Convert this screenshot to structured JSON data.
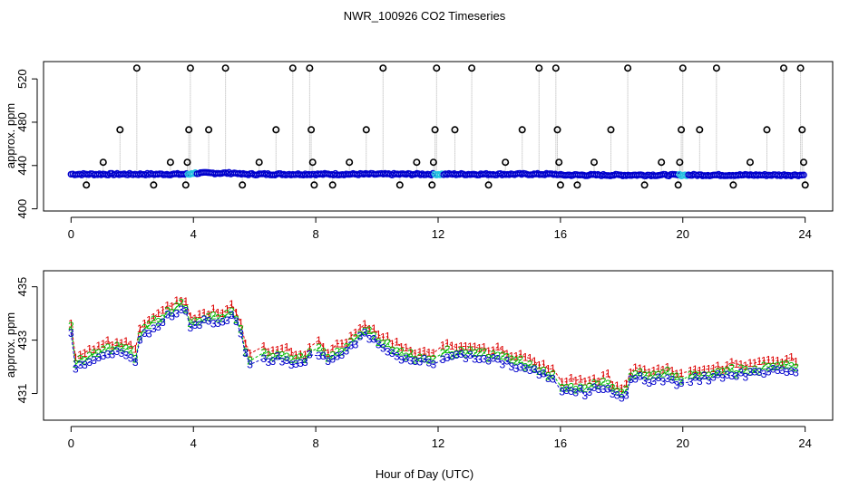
{
  "title": "NWR_100926  CO2 Timeseries",
  "xlabel": "Hour of Day (UTC)",
  "chart_data": [
    {
      "type": "scatter",
      "panel": "top",
      "ylabel": "approx. ppm",
      "xlim": [
        -0.9,
        24.9
      ],
      "ylim": [
        398,
        536
      ],
      "xticks": [
        0,
        4,
        8,
        12,
        16,
        20,
        24
      ],
      "xtick_labels": [
        "0",
        "4",
        "8",
        "12",
        "16",
        "20",
        "24"
      ],
      "yticks": [
        400,
        440,
        480,
        520
      ],
      "ytick_labels": [
        "400",
        "440",
        "480",
        "520"
      ],
      "colors": {
        "baseline": "#0000cc",
        "high_ring": "#000000",
        "connector": "#b0b0b0",
        "accent": "#22c0e0",
        "red": "#cc0000"
      },
      "outliers": [
        {
          "x": 0.5,
          "y": 422
        },
        {
          "x": 1.05,
          "y": 443
        },
        {
          "x": 1.6,
          "y": 473
        },
        {
          "x": 2.15,
          "y": 530
        },
        {
          "x": 2.7,
          "y": 422
        },
        {
          "x": 3.25,
          "y": 443
        },
        {
          "x": 3.75,
          "y": 422
        },
        {
          "x": 3.8,
          "y": 443
        },
        {
          "x": 3.85,
          "y": 473
        },
        {
          "x": 3.9,
          "y": 530
        },
        {
          "x": 4.5,
          "y": 473
        },
        {
          "x": 5.05,
          "y": 530
        },
        {
          "x": 5.6,
          "y": 422
        },
        {
          "x": 6.15,
          "y": 443
        },
        {
          "x": 6.7,
          "y": 473
        },
        {
          "x": 7.25,
          "y": 530
        },
        {
          "x": 7.8,
          "y": 530
        },
        {
          "x": 7.85,
          "y": 473
        },
        {
          "x": 7.9,
          "y": 443
        },
        {
          "x": 7.95,
          "y": 422
        },
        {
          "x": 8.55,
          "y": 422
        },
        {
          "x": 9.1,
          "y": 443
        },
        {
          "x": 9.65,
          "y": 473
        },
        {
          "x": 10.2,
          "y": 530
        },
        {
          "x": 10.75,
          "y": 422
        },
        {
          "x": 11.3,
          "y": 443
        },
        {
          "x": 11.8,
          "y": 422
        },
        {
          "x": 11.85,
          "y": 443
        },
        {
          "x": 11.9,
          "y": 473
        },
        {
          "x": 11.95,
          "y": 530
        },
        {
          "x": 12.55,
          "y": 473
        },
        {
          "x": 13.1,
          "y": 530
        },
        {
          "x": 13.65,
          "y": 422
        },
        {
          "x": 14.2,
          "y": 443
        },
        {
          "x": 14.75,
          "y": 473
        },
        {
          "x": 15.3,
          "y": 530
        },
        {
          "x": 15.85,
          "y": 530
        },
        {
          "x": 15.9,
          "y": 473
        },
        {
          "x": 15.95,
          "y": 443
        },
        {
          "x": 16.0,
          "y": 422
        },
        {
          "x": 16.55,
          "y": 422
        },
        {
          "x": 17.1,
          "y": 443
        },
        {
          "x": 17.65,
          "y": 473
        },
        {
          "x": 18.2,
          "y": 530
        },
        {
          "x": 18.75,
          "y": 422
        },
        {
          "x": 19.3,
          "y": 443
        },
        {
          "x": 19.85,
          "y": 422
        },
        {
          "x": 19.9,
          "y": 443
        },
        {
          "x": 19.95,
          "y": 473
        },
        {
          "x": 20.0,
          "y": 530
        },
        {
          "x": 20.55,
          "y": 473
        },
        {
          "x": 21.1,
          "y": 530
        },
        {
          "x": 21.65,
          "y": 422
        },
        {
          "x": 22.2,
          "y": 443
        },
        {
          "x": 22.75,
          "y": 473
        },
        {
          "x": 23.3,
          "y": 530
        },
        {
          "x": 23.85,
          "y": 530
        },
        {
          "x": 23.9,
          "y": 473
        },
        {
          "x": 23.95,
          "y": 443
        },
        {
          "x": 24.0,
          "y": 422
        }
      ]
    },
    {
      "type": "scatter",
      "panel": "bottom",
      "ylabel": "approx. ppm",
      "xlim": [
        -0.9,
        24.9
      ],
      "ylim": [
        430.0,
        435.6
      ],
      "xticks": [
        0,
        4,
        8,
        12,
        16,
        20,
        24
      ],
      "xtick_labels": [
        "0",
        "4",
        "8",
        "12",
        "16",
        "20",
        "24"
      ],
      "yticks": [
        431,
        433,
        435
      ],
      "ytick_labels": [
        "431",
        "433",
        "435"
      ],
      "symbols": [
        "1",
        "2",
        "3"
      ],
      "colors": {
        "series1": "#dd0000",
        "series2": "#00bb00",
        "series3": "#0000cc"
      },
      "knots": [
        [
          0.0,
          433.3
        ],
        [
          0.1,
          431.8
        ],
        [
          0.5,
          432.1
        ],
        [
          1.0,
          432.3
        ],
        [
          1.7,
          432.5
        ],
        [
          2.0,
          432.2
        ],
        [
          2.05,
          431.8
        ],
        [
          2.2,
          432.9
        ],
        [
          2.8,
          433.5
        ],
        [
          3.5,
          434.0
        ],
        [
          3.8,
          434.0
        ],
        [
          3.9,
          433.4
        ],
        [
          4.5,
          433.6
        ],
        [
          5.0,
          433.6
        ],
        [
          5.3,
          433.9
        ],
        [
          5.5,
          433.3
        ],
        [
          5.7,
          432.4
        ],
        [
          5.9,
          431.9
        ],
        [
          6.3,
          432.2
        ],
        [
          7.0,
          432.2
        ],
        [
          7.6,
          432.0
        ],
        [
          7.8,
          432.3
        ],
        [
          7.95,
          432.6
        ],
        [
          8.4,
          432.2
        ],
        [
          9.0,
          432.5
        ],
        [
          9.6,
          433.2
        ],
        [
          10.2,
          432.6
        ],
        [
          11.0,
          432.2
        ],
        [
          11.9,
          432.0
        ],
        [
          12.0,
          432.3
        ],
        [
          13.2,
          432.3
        ],
        [
          14.2,
          432.1
        ],
        [
          15.0,
          431.8
        ],
        [
          15.8,
          431.4
        ],
        [
          15.9,
          431.0
        ],
        [
          17.0,
          431.0
        ],
        [
          17.5,
          431.2
        ],
        [
          17.8,
          430.8
        ],
        [
          18.1,
          430.8
        ],
        [
          18.4,
          431.6
        ],
        [
          18.8,
          431.4
        ],
        [
          19.6,
          431.5
        ],
        [
          19.95,
          431.2
        ],
        [
          20.1,
          431.4
        ],
        [
          21.0,
          431.5
        ],
        [
          22.0,
          431.6
        ],
        [
          23.0,
          431.8
        ],
        [
          23.8,
          431.8
        ]
      ],
      "offsets": {
        "series1": 0.4,
        "series2": 0.17,
        "series3": 0.0
      }
    }
  ]
}
